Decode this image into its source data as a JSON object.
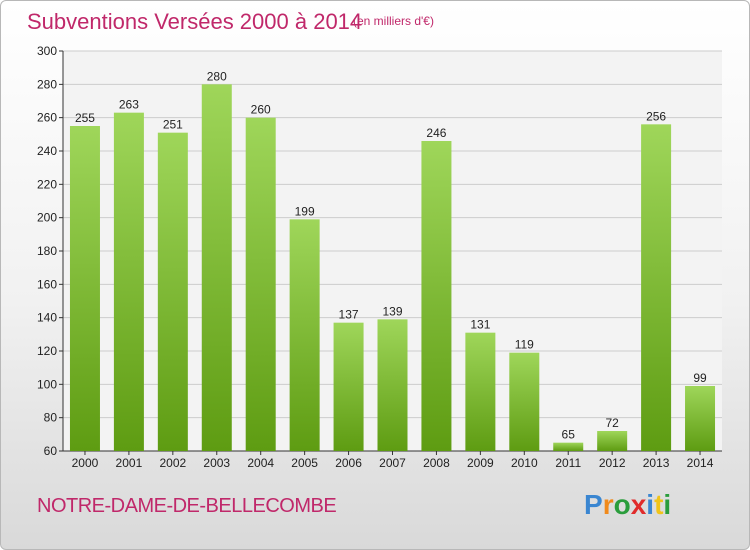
{
  "chart_data": {
    "type": "bar",
    "title": "Subventions Versées 2000 à 2014",
    "subtitle": "(en milliers d'€)",
    "categories": [
      "2000",
      "2001",
      "2002",
      "2003",
      "2004",
      "2005",
      "2006",
      "2007",
      "2008",
      "2009",
      "2010",
      "2011",
      "2012",
      "2013",
      "2014"
    ],
    "values": [
      255,
      263,
      251,
      280,
      260,
      199,
      137,
      139,
      246,
      131,
      119,
      65,
      72,
      256,
      99
    ],
    "yticks": [
      60,
      80,
      100,
      120,
      140,
      160,
      180,
      200,
      220,
      240,
      260,
      280,
      300
    ],
    "ylim": [
      60,
      300
    ],
    "grid": true,
    "colors": {
      "bar_light": "#9fd65a",
      "bar_dark": "#5e9c12",
      "grid": "#cccccc"
    }
  },
  "footer": {
    "place": "NOTRE-DAME-DE-BELLECOMBE",
    "logo_letters": [
      {
        "ch": "P",
        "color": "#3a86d1"
      },
      {
        "ch": "r",
        "color": "#f08a1c"
      },
      {
        "ch": "o",
        "color": "#2a9d3c"
      },
      {
        "ch": "x",
        "color": "#e02b2b"
      },
      {
        "ch": "i",
        "color": "#3a86d1"
      },
      {
        "ch": "t",
        "color": "#f0c419"
      },
      {
        "ch": "i",
        "color": "#2a9d3c"
      }
    ]
  }
}
